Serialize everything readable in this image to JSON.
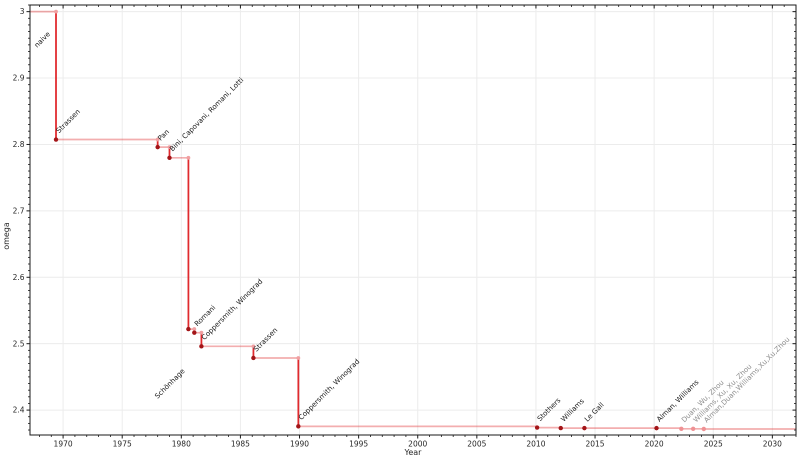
{
  "chart_data": {
    "type": "line",
    "subtype": "step-post",
    "title": "",
    "xlabel": "Year",
    "ylabel": "omega",
    "xlim": [
      1967.2,
      2032.0
    ],
    "ylim": [
      2.3625,
      3.01
    ],
    "grid": true,
    "legend": "none",
    "xticks": [
      1970,
      1975,
      1980,
      1985,
      1990,
      1995,
      2000,
      2005,
      2010,
      2015,
      2020,
      2025,
      2030
    ],
    "xtick_labels": [
      "1970",
      "1975",
      "1980",
      "1985",
      "1990",
      "1995",
      "2000",
      "2005",
      "2010",
      "2015",
      "2020",
      "2025",
      "2030"
    ],
    "yticks": [
      2.4,
      2.5,
      2.6,
      2.7,
      2.8,
      2.9,
      3.0
    ],
    "ytick_labels": [
      "2.4",
      "2.5",
      "2.6",
      "2.7",
      "2.8",
      "2.9",
      "3"
    ],
    "x_minor_step": 1,
    "y_minor_step": 0.01,
    "colors": {
      "step_line_light": "rgba(224,42,46,0.38)",
      "drop_line": "#e02a2e",
      "marker_established": "#a31518",
      "marker_top_light": "#f0a0a2",
      "marker_provisional": "#ef9194",
      "label_established": "#1a1a1a",
      "label_provisional": "#8f8f8f",
      "grid": "#ececec",
      "axis": "#1a1a1a",
      "tick_label": "#262626"
    },
    "points": [
      {
        "label": "naive",
        "year": null,
        "omega": 3.0,
        "established": true,
        "label_anchor": {
          "year": 1967.8,
          "omega": 2.9453
        }
      },
      {
        "label": "Strassen",
        "year": 1969.4,
        "omega": 2.8074,
        "established": true
      },
      {
        "label": "Pan",
        "year": 1978.0,
        "omega": 2.796,
        "established": true
      },
      {
        "label": "Bini, Capovani, Romani, Lotti",
        "year": 1979.0,
        "omega": 2.7799,
        "established": true
      },
      {
        "label": "Schönhage",
        "year": 1980.6,
        "omega": 2.522,
        "established": true,
        "label_anchor": {
          "year": 1978.0,
          "omega": 2.4167
        }
      },
      {
        "label": "Romani",
        "year": 1981.1,
        "omega": 2.5166,
        "established": true
      },
      {
        "label": "Coppersmith, Winograd",
        "year": 1981.7,
        "omega": 2.496,
        "established": true
      },
      {
        "label": "Strassen",
        "year": 1986.1,
        "omega": 2.4785,
        "established": true
      },
      {
        "label": "Coppersmith, Winograd",
        "year": 1989.9,
        "omega": 2.3755,
        "established": true
      },
      {
        "label": "Stothers",
        "year": 2010.1,
        "omega": 2.3737,
        "established": true
      },
      {
        "label": "Williams",
        "year": 2012.1,
        "omega": 2.3729,
        "established": true
      },
      {
        "label": "Le Gall",
        "year": 2014.1,
        "omega": 2.3728639,
        "established": true
      },
      {
        "label": "Alman, Williams",
        "year": 2020.2,
        "omega": 2.3728596,
        "established": true
      },
      {
        "label": "Duan, Wu, Zhou",
        "year": 2022.3,
        "omega": 2.37188,
        "established": false
      },
      {
        "label": "Williams, Xu, Xu, Zhou",
        "year": 2023.3,
        "omega": 2.371866,
        "established": false
      },
      {
        "label": "Alman,Duan,Williams,Xu,Xu,Zhou",
        "year": 2024.2,
        "omega": 2.371552,
        "established": false
      }
    ]
  }
}
